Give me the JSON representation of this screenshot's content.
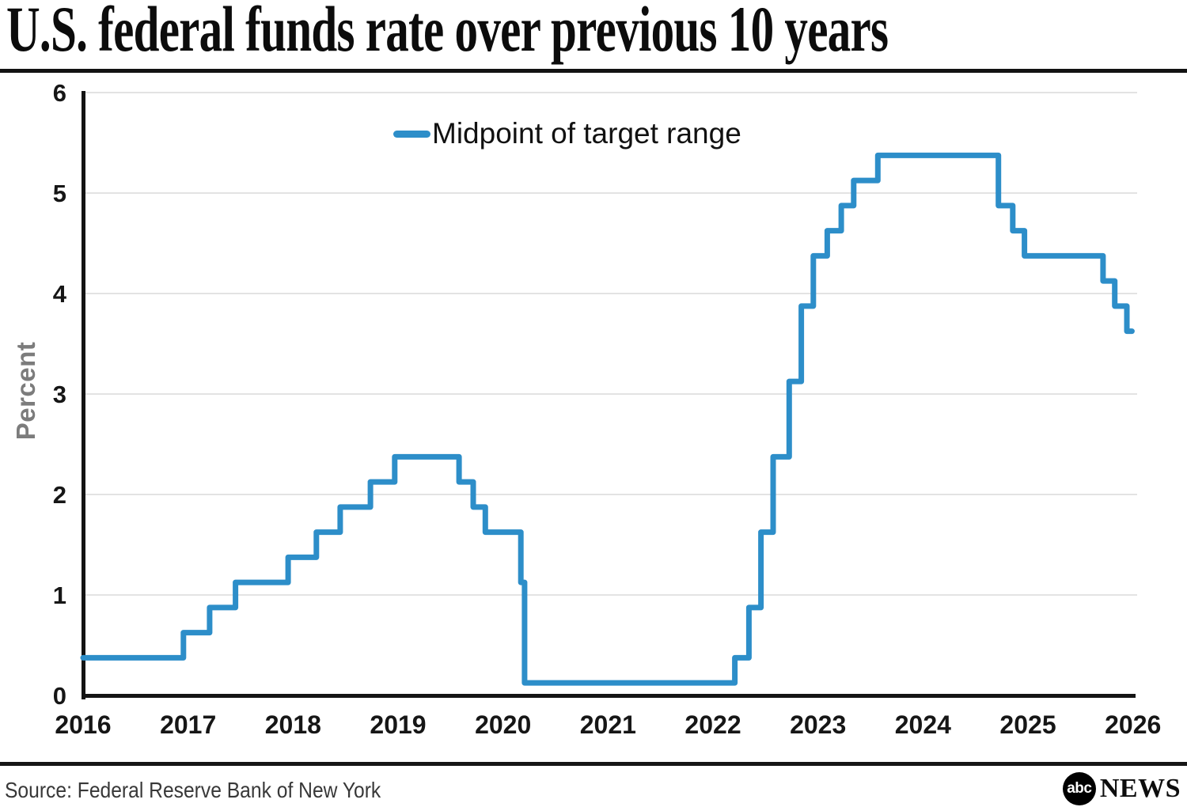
{
  "title": "U.S. federal funds rate over previous 10 years",
  "footer": {
    "source": "Source: Federal Reserve Bank of New York",
    "logo_abc": "abc",
    "logo_news": "NEWS"
  },
  "chart_data": {
    "type": "line",
    "style": "step-after",
    "title": "U.S. federal funds rate over previous 10 years",
    "legend": {
      "label": "Midpoint of target range",
      "position": "top-center"
    },
    "xlabel": "",
    "ylabel": "Percent",
    "ylim": [
      0,
      6
    ],
    "xlim": [
      2016,
      2026.04
    ],
    "yticks": [
      0,
      1,
      2,
      3,
      4,
      5,
      6
    ],
    "xticks": [
      2016,
      2017,
      2018,
      2019,
      2020,
      2021,
      2022,
      2023,
      2024,
      2025,
      2026
    ],
    "grid": "horizontal",
    "series": [
      {
        "name": "Midpoint of target range",
        "color": "#2d8ec9",
        "units": "percent",
        "points": [
          [
            2016.0,
            0.375
          ],
          [
            2016.956,
            0.625
          ],
          [
            2017.205,
            0.875
          ],
          [
            2017.452,
            1.125
          ],
          [
            2017.953,
            1.375
          ],
          [
            2018.222,
            1.625
          ],
          [
            2018.449,
            1.875
          ],
          [
            2018.737,
            2.125
          ],
          [
            2018.968,
            2.375
          ],
          [
            2019.581,
            2.125
          ],
          [
            2019.716,
            1.875
          ],
          [
            2019.831,
            1.625
          ],
          [
            2020.17,
            1.125
          ],
          [
            2020.205,
            0.125
          ],
          [
            2022.208,
            0.375
          ],
          [
            2022.342,
            0.875
          ],
          [
            2022.457,
            1.625
          ],
          [
            2022.573,
            2.375
          ],
          [
            2022.726,
            3.125
          ],
          [
            2022.841,
            3.875
          ],
          [
            2022.956,
            4.375
          ],
          [
            2023.088,
            4.625
          ],
          [
            2023.222,
            4.875
          ],
          [
            2023.34,
            5.125
          ],
          [
            2023.57,
            5.375
          ],
          [
            2024.719,
            4.875
          ],
          [
            2024.855,
            4.625
          ],
          [
            2024.967,
            4.375
          ],
          [
            2025.715,
            4.125
          ],
          [
            2025.827,
            3.875
          ],
          [
            2025.942,
            3.625
          ]
        ],
        "end_x": 2025.99
      }
    ]
  },
  "colors": {
    "accent_blue": "#2d8ec9",
    "grid": "#e3e3e3",
    "axis": "#141414",
    "tick_label": "#161616",
    "ylabel_gray": "#7c7c7c",
    "rule_black": "#121212"
  }
}
